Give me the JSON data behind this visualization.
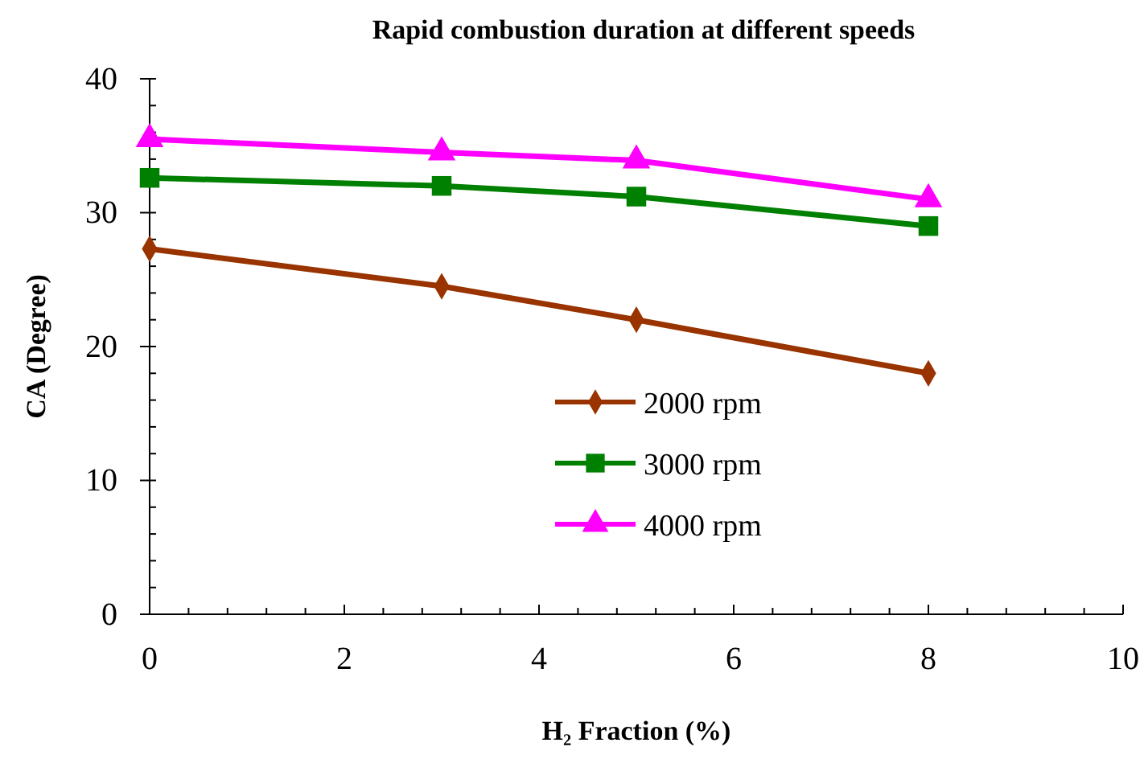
{
  "chart_data": {
    "type": "line",
    "title": "Rapid combustion duration at different speeds",
    "xlabel": "H₂ Fraction (%)",
    "ylabel": "CA (Degree)",
    "x": [
      0,
      3,
      5,
      8
    ],
    "series": [
      {
        "name": "2000 rpm",
        "color": "#993300",
        "marker": "diamond",
        "values": [
          27.3,
          24.5,
          22.0,
          18.0
        ]
      },
      {
        "name": "3000 rpm",
        "color": "#008000",
        "marker": "square",
        "values": [
          32.6,
          32.0,
          31.2,
          29.0
        ]
      },
      {
        "name": "4000 rpm",
        "color": "#ff00ff",
        "marker": "triangle",
        "values": [
          35.5,
          34.5,
          33.9,
          31.0
        ]
      }
    ],
    "xlim": [
      0,
      10
    ],
    "xticks": [
      0,
      2,
      4,
      6,
      8,
      10
    ],
    "ylim": [
      0,
      40
    ],
    "yticks": [
      0,
      10,
      20,
      30,
      40
    ],
    "grid": false,
    "legend": "center",
    "line_style": "solid"
  }
}
